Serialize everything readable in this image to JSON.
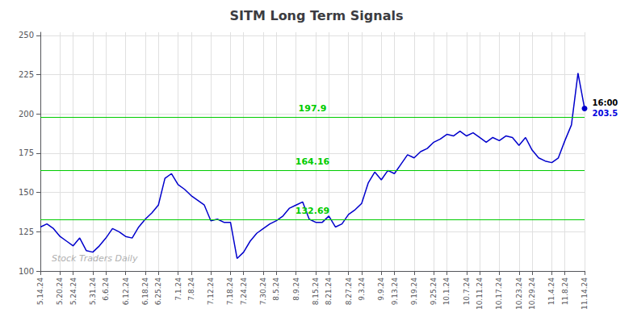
{
  "chart_data": {
    "type": "line",
    "title": "SITM Long Term Signals",
    "color": "#0000cc",
    "categories": [
      "5.14.24",
      null,
      null,
      "5.20.24",
      null,
      "5.24.24",
      null,
      null,
      "5.31.24",
      null,
      "6.6.24",
      null,
      null,
      "6.12.24",
      null,
      null,
      "6.18.24",
      null,
      "6.25.24",
      null,
      null,
      "7.1.24",
      null,
      "7.8.24",
      null,
      null,
      "7.12.24",
      null,
      null,
      "7.18.24",
      null,
      "7.24.24",
      null,
      null,
      "7.30.24",
      null,
      "8.5.24",
      null,
      null,
      "8.9.24",
      null,
      null,
      "8.15.24",
      null,
      "8.21.24",
      null,
      null,
      "8.27.24",
      null,
      "9.3.24",
      null,
      null,
      "9.9.24",
      null,
      "9.13.24",
      null,
      null,
      "9.19.24",
      null,
      null,
      "9.25.24",
      null,
      "10.1.24",
      null,
      null,
      "10.7.24",
      null,
      "10.11.24",
      null,
      null,
      "10.17.24",
      null,
      null,
      "10.23.24",
      null,
      "10.29.24",
      null,
      null,
      "11.4.24",
      null,
      "11.8.24",
      null,
      null,
      "11.14.24"
    ],
    "values": [
      128,
      130,
      127,
      122,
      119,
      116,
      121,
      113,
      112,
      116,
      121,
      127,
      125,
      122,
      121,
      128,
      133,
      137,
      142,
      159,
      162,
      155,
      152,
      148,
      145,
      142,
      132,
      133,
      131,
      131,
      108,
      112,
      119,
      124,
      127,
      130,
      132,
      135,
      140,
      142,
      144,
      133,
      131,
      131,
      135,
      128,
      130,
      136,
      139,
      143,
      156,
      163,
      158,
      164,
      162,
      168,
      174,
      172,
      176,
      178,
      182,
      184,
      187,
      186,
      189,
      186,
      188,
      185,
      182,
      185,
      183,
      186,
      185,
      180,
      185,
      177,
      172,
      170,
      169,
      172,
      183,
      193,
      226,
      203.5
    ],
    "hlines": [
      {
        "y": 197.9,
        "label": "197.9",
        "color": "#00cc00"
      },
      {
        "y": 164.16,
        "label": "164.16",
        "color": "#00cc00"
      },
      {
        "y": 132.69,
        "label": "132.69",
        "color": "#00cc00"
      }
    ],
    "end_label": {
      "text": "16:00",
      "color": "#000000"
    },
    "end_value_label": {
      "text": "203.5",
      "color": "#0000dd"
    },
    "watermark": "Stock Traders Daily",
    "ylim": [
      100,
      252
    ],
    "yticks": [
      100,
      125,
      150,
      175,
      200,
      225,
      250
    ],
    "grid": true
  }
}
